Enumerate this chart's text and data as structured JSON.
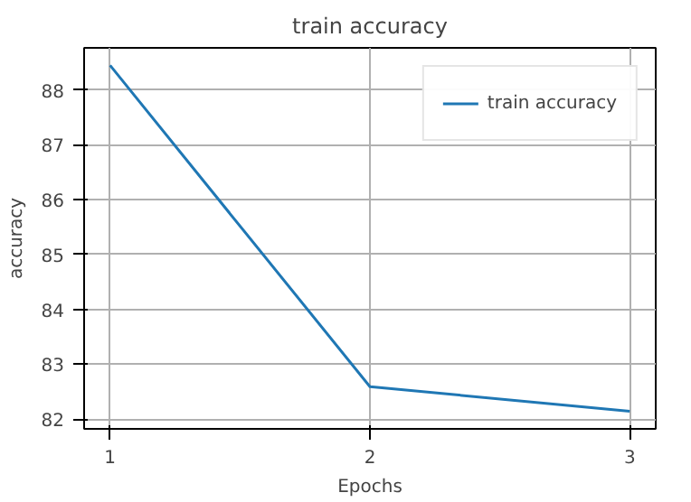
{
  "chart_data": {
    "type": "line",
    "title": "train accuracy",
    "xlabel": "Epochs",
    "ylabel": "accuracy",
    "x": [
      1,
      2,
      3
    ],
    "series": [
      {
        "name": "train accuracy",
        "color": "#1f77b4",
        "values": [
          88.45,
          82.59,
          82.14
        ]
      }
    ],
    "xlim": [
      0.9,
      3.1
    ],
    "ylim": [
      81.82,
      88.77
    ],
    "xticks": [
      1,
      2,
      3
    ],
    "yticks": [
      82,
      83,
      84,
      85,
      86,
      87,
      88
    ],
    "grid": true,
    "legend": "top right"
  }
}
